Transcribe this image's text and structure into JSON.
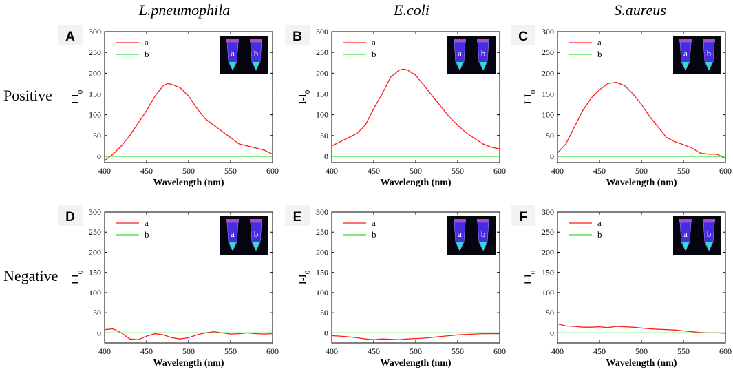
{
  "organisms": [
    "L.pneumophila",
    "E.coli",
    "S.aureus"
  ],
  "row_labels": [
    "Positive",
    "Negative"
  ],
  "legend_labels": [
    "a",
    "b"
  ],
  "colors": {
    "a": "#ff1a1a",
    "b": "#33dd33",
    "axis": "#000000"
  },
  "inset_label_a": "a",
  "inset_label_b": "b",
  "chart_data": [
    {
      "panel": "A",
      "type": "line",
      "row": "Positive",
      "organism": "L.pneumophila",
      "xlabel": "Wavelength (nm)",
      "ylabel": "I-I0",
      "xlim": [
        400,
        600
      ],
      "ylim": [
        -15,
        300
      ],
      "xticks": [
        400,
        450,
        500,
        550,
        600
      ],
      "yticks": [
        0,
        50,
        100,
        150,
        200,
        250,
        300
      ],
      "series": [
        {
          "name": "a",
          "x": [
            400,
            410,
            420,
            430,
            440,
            450,
            460,
            470,
            475,
            480,
            490,
            500,
            510,
            520,
            530,
            540,
            550,
            560,
            570,
            580,
            590,
            600
          ],
          "y": [
            -10,
            5,
            25,
            50,
            80,
            110,
            145,
            170,
            175,
            173,
            165,
            145,
            115,
            90,
            75,
            60,
            45,
            30,
            25,
            20,
            15,
            5
          ]
        },
        {
          "name": "b",
          "x": [
            400,
            600
          ],
          "y": [
            0,
            0
          ]
        }
      ]
    },
    {
      "panel": "B",
      "type": "line",
      "row": "Positive",
      "organism": "E.coli",
      "xlabel": "Wavelength (nm)",
      "ylabel": "I-I0",
      "xlim": [
        400,
        600
      ],
      "ylim": [
        -15,
        300
      ],
      "xticks": [
        400,
        450,
        500,
        550,
        600
      ],
      "yticks": [
        0,
        50,
        100,
        150,
        200,
        250,
        300
      ],
      "series": [
        {
          "name": "a",
          "x": [
            400,
            410,
            420,
            430,
            440,
            450,
            460,
            470,
            480,
            485,
            490,
            500,
            510,
            520,
            530,
            540,
            550,
            560,
            570,
            580,
            590,
            600
          ],
          "y": [
            25,
            35,
            45,
            55,
            75,
            115,
            150,
            190,
            207,
            210,
            208,
            195,
            170,
            145,
            120,
            95,
            75,
            57,
            43,
            30,
            22,
            18
          ]
        },
        {
          "name": "b",
          "x": [
            400,
            600
          ],
          "y": [
            0,
            0
          ]
        }
      ]
    },
    {
      "panel": "C",
      "type": "line",
      "row": "Positive",
      "organism": "S.aureus",
      "xlabel": "Wavelength (nm)",
      "ylabel": "I-I0",
      "xlim": [
        400,
        600
      ],
      "ylim": [
        -15,
        300
      ],
      "xticks": [
        400,
        450,
        500,
        550,
        600
      ],
      "yticks": [
        0,
        50,
        100,
        150,
        200,
        250,
        300
      ],
      "series": [
        {
          "name": "a",
          "x": [
            400,
            410,
            420,
            430,
            440,
            450,
            460,
            470,
            480,
            490,
            500,
            510,
            520,
            530,
            540,
            550,
            560,
            570,
            580,
            590,
            600
          ],
          "y": [
            8,
            30,
            70,
            110,
            140,
            160,
            175,
            178,
            170,
            150,
            125,
            95,
            70,
            45,
            35,
            28,
            20,
            8,
            5,
            5,
            -5
          ]
        },
        {
          "name": "b",
          "x": [
            400,
            600
          ],
          "y": [
            0,
            0
          ]
        }
      ]
    },
    {
      "panel": "D",
      "type": "line",
      "row": "Negative",
      "organism": "L.pneumophila",
      "xlabel": "Wavelength (nm)",
      "ylabel": "I-I0",
      "xlim": [
        400,
        600
      ],
      "ylim": [
        -25,
        300
      ],
      "xticks": [
        400,
        450,
        500,
        550,
        600
      ],
      "yticks": [
        0,
        50,
        100,
        150,
        200,
        250,
        300
      ],
      "series": [
        {
          "name": "a",
          "x": [
            400,
            410,
            420,
            430,
            440,
            450,
            460,
            470,
            480,
            490,
            500,
            510,
            520,
            530,
            540,
            550,
            560,
            570,
            580,
            590,
            600
          ],
          "y": [
            8,
            10,
            0,
            -15,
            -17,
            -8,
            -2,
            -5,
            -12,
            -15,
            -12,
            -5,
            0,
            3,
            0,
            -3,
            -2,
            0,
            -2,
            -3,
            -2
          ]
        },
        {
          "name": "b",
          "x": [
            400,
            600
          ],
          "y": [
            0,
            0
          ]
        }
      ]
    },
    {
      "panel": "E",
      "type": "line",
      "row": "Negative",
      "organism": "E.coli",
      "xlabel": "Wavelength (nm)",
      "ylabel": "I-I0",
      "xlim": [
        400,
        600
      ],
      "ylim": [
        -25,
        300
      ],
      "xticks": [
        400,
        450,
        500,
        550,
        600
      ],
      "yticks": [
        0,
        50,
        100,
        150,
        200,
        250,
        300
      ],
      "series": [
        {
          "name": "a",
          "x": [
            400,
            410,
            420,
            430,
            440,
            450,
            460,
            470,
            480,
            490,
            500,
            510,
            520,
            530,
            540,
            550,
            560,
            570,
            580,
            590,
            600
          ],
          "y": [
            -7,
            -8,
            -10,
            -12,
            -15,
            -17,
            -15,
            -16,
            -17,
            -15,
            -14,
            -13,
            -11,
            -9,
            -7,
            -5,
            -4,
            -3,
            -2,
            -2,
            -2
          ]
        },
        {
          "name": "b",
          "x": [
            400,
            600
          ],
          "y": [
            0,
            0
          ]
        }
      ]
    },
    {
      "panel": "F",
      "type": "line",
      "row": "Negative",
      "organism": "S.aureus",
      "xlabel": "Wavelength (nm)",
      "ylabel": "I-I0",
      "xlim": [
        400,
        600
      ],
      "ylim": [
        -25,
        300
      ],
      "xticks": [
        400,
        450,
        500,
        550,
        600
      ],
      "yticks": [
        0,
        50,
        100,
        150,
        200,
        250,
        300
      ],
      "series": [
        {
          "name": "a",
          "x": [
            400,
            410,
            420,
            430,
            440,
            450,
            460,
            470,
            480,
            490,
            500,
            510,
            520,
            530,
            540,
            550,
            560,
            570,
            580,
            590,
            600
          ],
          "y": [
            22,
            17,
            16,
            14,
            14,
            15,
            13,
            16,
            15,
            14,
            12,
            10,
            9,
            8,
            7,
            5,
            3,
            1,
            0,
            0,
            -1
          ]
        },
        {
          "name": "b",
          "x": [
            400,
            600
          ],
          "y": [
            0,
            0
          ]
        }
      ]
    }
  ]
}
